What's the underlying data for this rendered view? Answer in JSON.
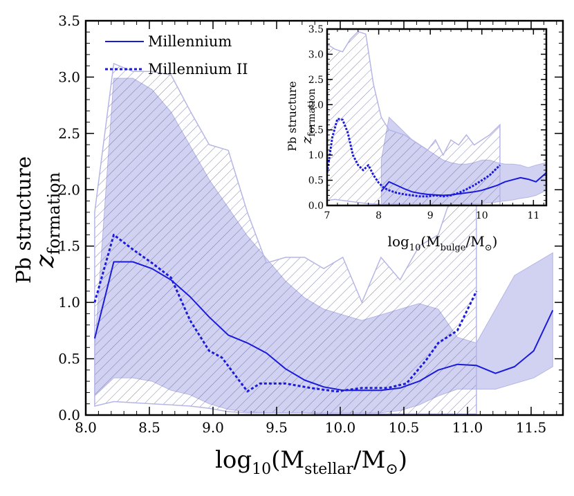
{
  "chart_data": [
    {
      "type": "line",
      "panel": "main",
      "xlabel": {
        "prefix": "log",
        "base": "10",
        "open": "(M",
        "sub1": "stellar",
        "mid": "/M",
        "sub2": "⊙",
        "close": ")"
      },
      "ylabel": {
        "line1": "Pb structure",
        "z": "z",
        "sub": "formation"
      },
      "xlim": [
        8.0,
        11.75
      ],
      "ylim": [
        0.0,
        3.5
      ],
      "x_ticks": [
        8.0,
        8.5,
        9.0,
        9.5,
        10.0,
        10.5,
        11.0,
        11.5
      ],
      "x_tick_labels": [
        "8.0",
        "8.5",
        "9.0",
        "9.5",
        "10.0",
        "10.5",
        "11.0",
        "11.5"
      ],
      "y_ticks": [
        0.0,
        0.5,
        1.0,
        1.5,
        2.0,
        2.5,
        3.0,
        3.5
      ],
      "y_tick_labels": [
        "0.0",
        "0.5",
        "1.0",
        "1.5",
        "2.0",
        "2.5",
        "3.0",
        "3.5"
      ],
      "legend": {
        "position": "top-left",
        "entries": [
          {
            "label": "Millennium",
            "style": "solid"
          },
          {
            "label": "Millennium II",
            "style": "dotted"
          }
        ]
      },
      "series": [
        {
          "name": "Millennium",
          "style": "solid",
          "x": [
            8.07,
            8.22,
            8.37,
            8.52,
            8.67,
            8.82,
            8.97,
            9.12,
            9.27,
            9.42,
            9.57,
            9.72,
            9.87,
            10.02,
            10.17,
            10.32,
            10.47,
            10.62,
            10.77,
            10.92,
            11.07,
            11.22,
            11.37,
            11.52,
            11.67
          ],
          "y": [
            0.68,
            1.36,
            1.36,
            1.3,
            1.2,
            1.05,
            0.87,
            0.71,
            0.64,
            0.55,
            0.41,
            0.31,
            0.25,
            0.22,
            0.22,
            0.22,
            0.24,
            0.3,
            0.4,
            0.45,
            0.44,
            0.37,
            0.43,
            0.57,
            0.93
          ]
        },
        {
          "name": "Millennium II",
          "style": "dotted",
          "x": [
            8.07,
            8.22,
            8.37,
            8.52,
            8.67,
            8.82,
            8.97,
            9.07,
            9.17,
            9.27,
            9.37,
            9.57,
            9.77,
            9.97,
            10.17,
            10.37,
            10.52,
            10.67,
            10.77,
            10.92,
            11.07
          ],
          "y": [
            1.0,
            1.6,
            1.47,
            1.35,
            1.22,
            0.84,
            0.57,
            0.51,
            0.36,
            0.21,
            0.28,
            0.28,
            0.24,
            0.21,
            0.24,
            0.24,
            0.28,
            0.48,
            0.64,
            0.75,
            1.1
          ]
        }
      ],
      "bands": [
        {
          "name": "Millennium range",
          "style": "filled",
          "x": [
            8.07,
            8.22,
            8.37,
            8.52,
            8.67,
            8.82,
            8.97,
            9.12,
            9.27,
            9.42,
            9.57,
            9.72,
            9.87,
            10.02,
            10.17,
            10.32,
            10.47,
            10.62,
            10.77,
            10.92,
            11.07,
            11.22,
            11.37,
            11.52,
            11.67
          ],
          "lower": [
            0.17,
            0.33,
            0.33,
            0.3,
            0.22,
            0.18,
            0.1,
            0.05,
            0.03,
            0.02,
            0.02,
            0.02,
            0.02,
            0.02,
            0.02,
            0.02,
            0.04,
            0.09,
            0.17,
            0.23,
            0.23,
            0.23,
            0.28,
            0.33,
            0.43
          ],
          "upper": [
            0.58,
            2.99,
            2.99,
            2.89,
            2.69,
            2.39,
            2.09,
            1.84,
            1.59,
            1.39,
            1.19,
            1.04,
            0.94,
            0.89,
            0.84,
            0.89,
            0.94,
            0.99,
            0.94,
            0.69,
            0.64,
            0.94,
            1.24,
            1.34,
            1.44
          ]
        },
        {
          "name": "Millennium II range",
          "style": "hatched",
          "x": [
            8.07,
            8.22,
            8.37,
            8.52,
            8.67,
            8.82,
            8.97,
            9.12,
            9.27,
            9.42,
            9.57,
            9.72,
            9.87,
            10.02,
            10.17,
            10.32,
            10.47,
            10.62,
            10.77,
            10.92,
            11.07
          ],
          "lower": [
            0.08,
            0.12,
            0.11,
            0.1,
            0.09,
            0.08,
            0.06,
            0.03,
            0.02,
            0.02,
            0.02,
            0.02,
            0.01,
            0.01,
            0.01,
            0.01,
            0.01,
            0.01,
            0.01,
            0.01,
            0.01
          ],
          "upper": [
            1.8,
            3.12,
            3.05,
            3.05,
            3.02,
            2.7,
            2.4,
            2.35,
            1.8,
            1.35,
            1.4,
            1.4,
            1.3,
            1.4,
            1.0,
            1.4,
            1.2,
            1.5,
            1.6,
            2.1,
            2.6
          ]
        }
      ]
    },
    {
      "type": "line",
      "panel": "inset",
      "xlabel": {
        "prefix": "log",
        "base": "10",
        "open": "(M",
        "sub1": "bulge",
        "mid": "/M",
        "sub2": "⊙",
        "close": ")"
      },
      "ylabel": {
        "line1": "Pb structure",
        "z": "z",
        "sub": "formation"
      },
      "xlim": [
        7.0,
        11.25
      ],
      "ylim": [
        0.0,
        3.5
      ],
      "x_ticks": [
        7,
        8,
        9,
        10,
        11
      ],
      "x_tick_labels": [
        "7",
        "8",
        "9",
        "10",
        "11"
      ],
      "y_ticks": [
        0.0,
        0.5,
        1.0,
        1.5,
        2.0,
        2.5,
        3.0,
        3.5
      ],
      "y_tick_labels": [
        "0.0",
        "0.5",
        "1.0",
        "1.5",
        "2.0",
        "2.5",
        "3.0",
        "3.5"
      ],
      "series": [
        {
          "name": "Millennium",
          "style": "solid",
          "x": [
            8.05,
            8.2,
            8.35,
            8.5,
            8.65,
            8.8,
            8.95,
            9.1,
            9.25,
            9.4,
            9.55,
            9.7,
            9.85,
            10.0,
            10.15,
            10.3,
            10.45,
            10.6,
            10.75,
            10.9,
            11.05,
            11.25
          ],
          "y": [
            0.28,
            0.47,
            0.4,
            0.33,
            0.27,
            0.24,
            0.22,
            0.21,
            0.2,
            0.21,
            0.23,
            0.25,
            0.27,
            0.3,
            0.35,
            0.4,
            0.47,
            0.51,
            0.55,
            0.52,
            0.47,
            0.65
          ]
        },
        {
          "name": "Millennium II",
          "style": "dotted",
          "x": [
            7.0,
            7.1,
            7.2,
            7.3,
            7.4,
            7.5,
            7.6,
            7.7,
            7.8,
            7.9,
            8.0,
            8.1,
            8.2,
            8.35,
            8.5,
            8.65,
            8.8,
            8.95,
            9.1,
            9.25,
            9.4,
            9.55,
            9.7,
            9.85,
            10.0,
            10.15,
            10.35
          ],
          "y": [
            0.65,
            1.35,
            1.72,
            1.7,
            1.45,
            1.0,
            0.8,
            0.7,
            0.8,
            0.6,
            0.45,
            0.35,
            0.3,
            0.25,
            0.22,
            0.2,
            0.18,
            0.18,
            0.2,
            0.18,
            0.2,
            0.25,
            0.32,
            0.4,
            0.5,
            0.6,
            0.8
          ]
        }
      ],
      "bands": [
        {
          "name": "Millennium range",
          "style": "filled",
          "x": [
            8.05,
            8.2,
            8.35,
            8.5,
            8.65,
            8.8,
            8.95,
            9.1,
            9.25,
            9.4,
            9.55,
            9.7,
            9.85,
            10.0,
            10.15,
            10.3,
            10.45,
            10.6,
            10.75,
            10.9,
            11.05,
            11.25
          ],
          "lower": [
            0.03,
            0.03,
            0.03,
            0.03,
            0.02,
            0.02,
            0.02,
            0.02,
            0.02,
            0.02,
            0.02,
            0.03,
            0.03,
            0.04,
            0.05,
            0.07,
            0.09,
            0.11,
            0.14,
            0.16,
            0.2,
            0.3
          ],
          "upper": [
            0.9,
            1.75,
            1.6,
            1.45,
            1.3,
            1.2,
            1.1,
            1.0,
            0.9,
            0.85,
            0.82,
            0.82,
            0.85,
            0.9,
            0.9,
            0.85,
            0.82,
            0.82,
            0.8,
            0.75,
            0.8,
            0.85
          ]
        },
        {
          "name": "Millennium II range",
          "style": "hatched",
          "x": [
            7.0,
            7.15,
            7.3,
            7.45,
            7.6,
            7.75,
            7.9,
            8.05,
            8.2,
            8.35,
            8.5,
            8.65,
            8.8,
            8.95,
            9.1,
            9.25,
            9.4,
            9.55,
            9.7,
            9.85,
            10.0,
            10.15,
            10.35
          ],
          "lower": [
            0.1,
            0.12,
            0.1,
            0.08,
            0.06,
            0.04,
            0.03,
            0.02,
            0.02,
            0.02,
            0.02,
            0.02,
            0.02,
            0.02,
            0.01,
            0.01,
            0.01,
            0.01,
            0.01,
            0.01,
            0.01,
            0.01,
            0.01
          ],
          "upper": [
            3.2,
            3.1,
            3.05,
            3.3,
            3.45,
            3.4,
            2.4,
            1.75,
            1.5,
            1.45,
            1.4,
            1.3,
            1.2,
            1.1,
            1.3,
            1.0,
            1.3,
            1.2,
            1.4,
            1.2,
            1.3,
            1.4,
            1.6
          ]
        }
      ]
    }
  ],
  "colors": {
    "line": "#1a1adb",
    "band_fill": "#c9c9f0",
    "band_edge": "#b5b5e6",
    "hatch": "#5a5a90"
  }
}
